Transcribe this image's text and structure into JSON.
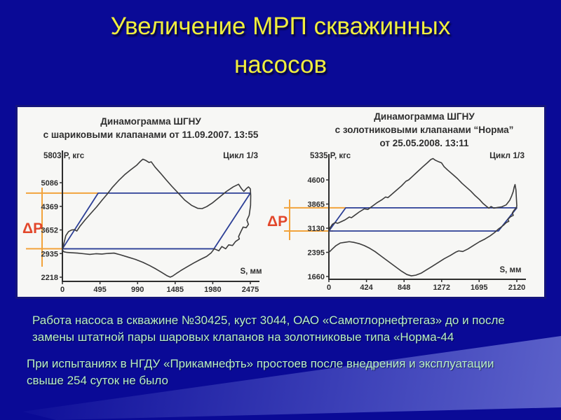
{
  "slide": {
    "title_lines": [
      "Увеличение МРП скважинных",
      "насосов"
    ],
    "caption1_lines": [
      "Работа насоса в скважине №30425, куст 3044, ОАО «Самотлорнефтегаз» до и после",
      "замены штатной пары шаровых клапанов на золотниковые типа «Норма-44"
    ],
    "caption2_lines": [
      "При испытаниях в НГДУ «Прикамнефть» простоев после внедрения и эксплуатации",
      "свыше 254 суток не было"
    ]
  },
  "colors": {
    "background": "#0a0a96",
    "title": "#f0ee3e",
    "caption_text": "#b7efc6",
    "panel_bg": "#f7f7f5",
    "panel_border": "#15157b",
    "axis": "#2e2e2e",
    "chart_text": "#2e2e2e",
    "parallelogram": "#2c3f96",
    "curve": "#3c3c3c",
    "annotation_orange": "#f2a33c",
    "delta_p_red": "#e2472b"
  },
  "chart_data": [
    {
      "type": "line",
      "title_lines": [
        "Динамограмма ШГНУ",
        "с шариковыми клапанами от 11.09.2007. 13:55"
      ],
      "cycle_label": "Цикл 1/3",
      "y_max_label": "5803 P, кгс",
      "y_ticks": [
        5086,
        4369,
        3652,
        2935,
        2218
      ],
      "x_ticks": [
        0,
        495,
        990,
        1485,
        1980,
        2475
      ],
      "x_label": "S, мм",
      "x_range": [
        0,
        2475
      ],
      "y_axis_max": 5803,
      "delta_p_label": "ΔP",
      "delta_p_levels": [
        4770,
        3080
      ],
      "parallelogram": [
        [
          0,
          3080
        ],
        [
          471,
          4770
        ],
        [
          2475,
          4770
        ],
        [
          1996,
          3080
        ]
      ],
      "curve": [
        [
          0,
          3050
        ],
        [
          20,
          3250
        ],
        [
          45,
          3480
        ],
        [
          80,
          3600
        ],
        [
          120,
          3650
        ],
        [
          160,
          3660
        ],
        [
          190,
          3620
        ],
        [
          230,
          3760
        ],
        [
          300,
          3960
        ],
        [
          380,
          4170
        ],
        [
          450,
          4350
        ],
        [
          520,
          4550
        ],
        [
          590,
          4740
        ],
        [
          660,
          4950
        ],
        [
          740,
          5150
        ],
        [
          820,
          5330
        ],
        [
          900,
          5480
        ],
        [
          980,
          5620
        ],
        [
          1030,
          5740
        ],
        [
          1060,
          5800
        ],
        [
          1100,
          5760
        ],
        [
          1140,
          5700
        ],
        [
          1170,
          5720
        ],
        [
          1220,
          5560
        ],
        [
          1290,
          5380
        ],
        [
          1360,
          5190
        ],
        [
          1440,
          4980
        ],
        [
          1530,
          4760
        ],
        [
          1610,
          4560
        ],
        [
          1700,
          4400
        ],
        [
          1780,
          4310
        ],
        [
          1840,
          4300
        ],
        [
          1900,
          4360
        ],
        [
          1980,
          4480
        ],
        [
          2070,
          4650
        ],
        [
          2160,
          4820
        ],
        [
          2250,
          4960
        ],
        [
          2320,
          5040
        ],
        [
          2360,
          4900
        ],
        [
          2390,
          4820
        ],
        [
          2420,
          4900
        ],
        [
          2450,
          4960
        ],
        [
          2475,
          4900
        ],
        [
          2480,
          4700
        ],
        [
          2478,
          4400
        ],
        [
          2460,
          4100
        ],
        [
          2430,
          3950
        ],
        [
          2450,
          3820
        ],
        [
          2420,
          3720
        ],
        [
          2380,
          3740
        ],
        [
          2350,
          3600
        ],
        [
          2320,
          3450
        ],
        [
          2330,
          3380
        ],
        [
          2280,
          3300
        ],
        [
          2240,
          3180
        ],
        [
          2190,
          3200
        ],
        [
          2150,
          3080
        ],
        [
          2100,
          3150
        ],
        [
          2060,
          3020
        ],
        [
          2000,
          3080
        ],
        [
          1960,
          2960
        ],
        [
          1900,
          2850
        ],
        [
          1820,
          2760
        ],
        [
          1730,
          2650
        ],
        [
          1640,
          2530
        ],
        [
          1560,
          2420
        ],
        [
          1500,
          2330
        ],
        [
          1450,
          2250
        ],
        [
          1420,
          2220
        ],
        [
          1380,
          2260
        ],
        [
          1310,
          2360
        ],
        [
          1230,
          2470
        ],
        [
          1150,
          2570
        ],
        [
          1060,
          2670
        ],
        [
          960,
          2760
        ],
        [
          860,
          2830
        ],
        [
          760,
          2900
        ],
        [
          680,
          2950
        ],
        [
          600,
          2940
        ],
        [
          520,
          2920
        ],
        [
          440,
          2930
        ],
        [
          360,
          2910
        ],
        [
          280,
          2930
        ],
        [
          200,
          2950
        ],
        [
          120,
          2960
        ],
        [
          60,
          2970
        ],
        [
          20,
          2990
        ],
        [
          0,
          3040
        ]
      ]
    },
    {
      "type": "line",
      "title_lines": [
        "Динамограмма ШГНУ",
        "с золотниковыми клапанами “Норма”",
        "от 25.05.2008. 13:11"
      ],
      "cycle_label": "Цикл 1/3",
      "y_max_label": "5335 P, кгс",
      "y_ticks": [
        4600,
        3865,
        3130,
        2395,
        1660
      ],
      "x_ticks": [
        0,
        424,
        848,
        1272,
        1695,
        2120
      ],
      "x_label": "S, мм",
      "x_range": [
        0,
        2120
      ],
      "y_axis_max": 5335,
      "delta_p_label": "ΔP",
      "delta_p_levels": [
        3750,
        3045
      ],
      "parallelogram": [
        [
          0,
          3045
        ],
        [
          190,
          3750
        ],
        [
          2120,
          3750
        ],
        [
          1912,
          3045
        ]
      ],
      "curve": [
        [
          0,
          3050
        ],
        [
          15,
          3150
        ],
        [
          40,
          3250
        ],
        [
          70,
          3300
        ],
        [
          100,
          3280
        ],
        [
          140,
          3330
        ],
        [
          180,
          3380
        ],
        [
          230,
          3470
        ],
        [
          255,
          3450
        ],
        [
          290,
          3520
        ],
        [
          340,
          3620
        ],
        [
          400,
          3720
        ],
        [
          440,
          3700
        ],
        [
          480,
          3780
        ],
        [
          540,
          3900
        ],
        [
          600,
          4000
        ],
        [
          640,
          4080
        ],
        [
          665,
          4060
        ],
        [
          700,
          4140
        ],
        [
          760,
          4280
        ],
        [
          820,
          4420
        ],
        [
          870,
          4560
        ],
        [
          900,
          4600
        ],
        [
          940,
          4700
        ],
        [
          1000,
          4850
        ],
        [
          1060,
          5000
        ],
        [
          1110,
          5120
        ],
        [
          1150,
          5220
        ],
        [
          1175,
          5250
        ],
        [
          1200,
          5200
        ],
        [
          1240,
          5150
        ],
        [
          1270,
          5120
        ],
        [
          1300,
          5000
        ],
        [
          1340,
          4900
        ],
        [
          1400,
          4760
        ],
        [
          1450,
          4640
        ],
        [
          1500,
          4500
        ],
        [
          1550,
          4380
        ],
        [
          1600,
          4260
        ],
        [
          1650,
          4120
        ],
        [
          1700,
          4000
        ],
        [
          1740,
          3880
        ],
        [
          1780,
          3790
        ],
        [
          1805,
          3740
        ],
        [
          1830,
          3790
        ],
        [
          1860,
          3740
        ],
        [
          1900,
          3760
        ],
        [
          1950,
          3780
        ],
        [
          2000,
          3840
        ],
        [
          2040,
          3980
        ],
        [
          2060,
          4100
        ],
        [
          2080,
          4250
        ],
        [
          2090,
          4380
        ],
        [
          2100,
          4460
        ],
        [
          2110,
          4300
        ],
        [
          2115,
          4050
        ],
        [
          2120,
          3800
        ],
        [
          2110,
          3740
        ],
        [
          2090,
          3680
        ],
        [
          2070,
          3600
        ],
        [
          2080,
          3520
        ],
        [
          2050,
          3480
        ],
        [
          2020,
          3400
        ],
        [
          2030,
          3340
        ],
        [
          2000,
          3300
        ],
        [
          1970,
          3220
        ],
        [
          1940,
          3160
        ],
        [
          1910,
          3100
        ],
        [
          1870,
          3000
        ],
        [
          1820,
          2900
        ],
        [
          1760,
          2800
        ],
        [
          1700,
          2720
        ],
        [
          1640,
          2620
        ],
        [
          1570,
          2500
        ],
        [
          1510,
          2420
        ],
        [
          1465,
          2440
        ],
        [
          1430,
          2400
        ],
        [
          1370,
          2300
        ],
        [
          1300,
          2200
        ],
        [
          1230,
          2080
        ],
        [
          1160,
          1960
        ],
        [
          1100,
          1860
        ],
        [
          1040,
          1760
        ],
        [
          980,
          1700
        ],
        [
          930,
          1680
        ],
        [
          880,
          1720
        ],
        [
          820,
          1820
        ],
        [
          760,
          1940
        ],
        [
          700,
          2060
        ],
        [
          640,
          2180
        ],
        [
          580,
          2300
        ],
        [
          520,
          2420
        ],
        [
          460,
          2520
        ],
        [
          400,
          2600
        ],
        [
          340,
          2660
        ],
        [
          280,
          2700
        ],
        [
          230,
          2720
        ],
        [
          180,
          2700
        ],
        [
          130,
          2680
        ],
        [
          80,
          2600
        ],
        [
          40,
          2500
        ],
        [
          10,
          2420
        ],
        [
          0,
          2400
        ]
      ]
    }
  ]
}
